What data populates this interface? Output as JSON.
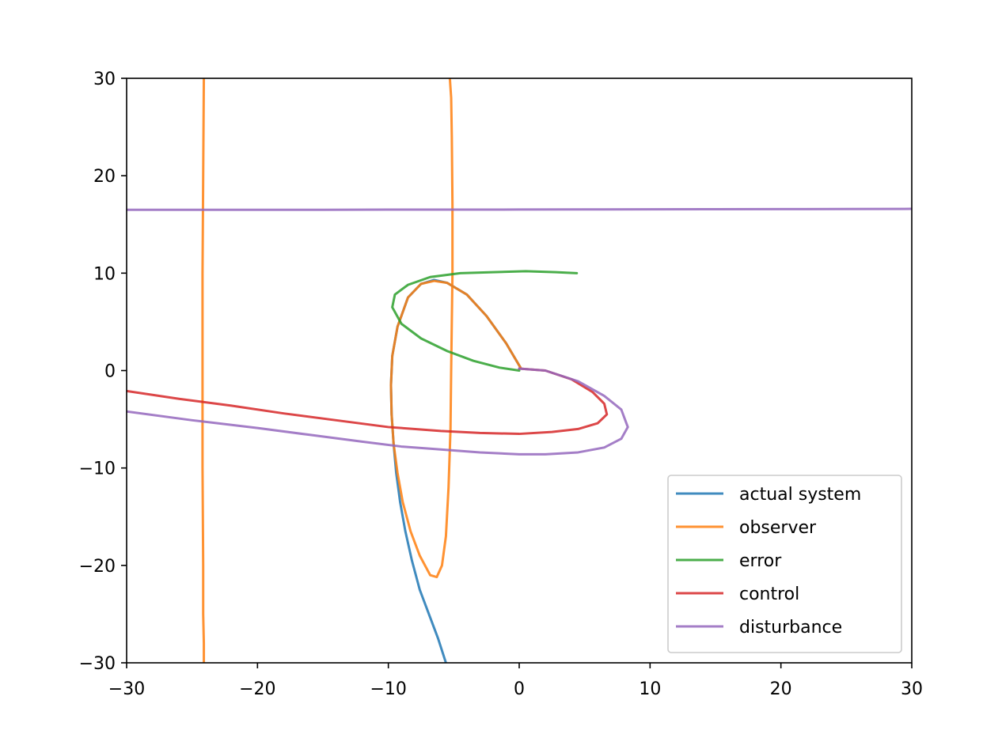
{
  "chart_data": {
    "type": "line",
    "title": "",
    "xlabel": "",
    "ylabel": "",
    "xlim": [
      -30,
      30
    ],
    "ylim": [
      -30,
      30
    ],
    "xticks": [
      -30,
      -20,
      -10,
      0,
      10,
      20,
      30
    ],
    "yticks": [
      -30,
      -20,
      -10,
      0,
      10,
      20,
      30
    ],
    "xtick_labels": [
      "−30",
      "−20",
      "−10",
      "0",
      "10",
      "20",
      "30"
    ],
    "ytick_labels": [
      "−30",
      "−20",
      "−10",
      "0",
      "10",
      "20",
      "30"
    ],
    "grid": false,
    "legend_position": "lower-right",
    "series": [
      {
        "name": "actual system",
        "color": "#1f77b4",
        "x": [
          0.1,
          -1.0,
          -2.5,
          -4.0,
          -5.5,
          -6.5,
          -7.5,
          -8.5,
          -9.3,
          -9.7,
          -9.8,
          -9.75,
          -9.6,
          -9.4,
          -9.1,
          -8.7,
          -8.2,
          -7.6,
          -6.9,
          -6.2,
          -5.6
        ],
        "y": [
          0.3,
          2.8,
          5.6,
          7.8,
          9.0,
          9.3,
          8.9,
          7.5,
          4.5,
          1.5,
          -1.5,
          -4.5,
          -7.5,
          -10.5,
          -13.5,
          -16.5,
          -19.5,
          -22.5,
          -25.0,
          -27.5,
          -30.0
        ]
      },
      {
        "name": "observer",
        "color": "#ff7f0e",
        "x": [
          -24.1,
          -24.15,
          -24.2,
          -24.2,
          -24.2,
          -24.15,
          -24.15,
          -24.1,
          -24.1,
          null,
          0.1,
          -1.0,
          -2.5,
          -4.0,
          -5.5,
          -6.5,
          -7.5,
          -8.5,
          -9.3,
          -9.7,
          -9.8,
          -9.75,
          -9.6,
          -9.3,
          -8.9,
          -8.3,
          -7.6,
          -6.8,
          -6.3,
          -5.9,
          -5.6,
          -5.4,
          -5.25,
          -5.2,
          -5.15,
          -5.1,
          -5.1,
          -5.15,
          -5.2,
          -5.3
        ],
        "y": [
          30.0,
          20.0,
          10.0,
          0.0,
          -10.0,
          -20.0,
          -25.0,
          -28.0,
          -30.0,
          null,
          0.3,
          2.8,
          5.6,
          7.8,
          9.0,
          9.2,
          8.9,
          7.5,
          4.5,
          1.5,
          -1.5,
          -4.5,
          -7.5,
          -10.5,
          -13.5,
          -16.5,
          -19.0,
          -21.0,
          -21.2,
          -20.0,
          -17.0,
          -12.0,
          -6.0,
          0.0,
          5.0,
          10.0,
          17.0,
          24.0,
          28.0,
          30.0
        ]
      },
      {
        "name": "error",
        "color": "#2ca02c",
        "x": [
          0.0,
          -1.5,
          -3.5,
          -5.5,
          -7.5,
          -9.0,
          -9.7,
          -9.5,
          -8.5,
          -6.8,
          -4.5,
          -2.0,
          0.5,
          2.8,
          4.4
        ],
        "y": [
          0.0,
          0.3,
          1.0,
          2.0,
          3.3,
          4.8,
          6.5,
          7.8,
          8.8,
          9.6,
          10.0,
          10.1,
          10.2,
          10.1,
          10.0
        ]
      },
      {
        "name": "control",
        "color": "#d62728",
        "x": [
          0.0,
          2.0,
          4.0,
          5.6,
          6.5,
          6.7,
          6.0,
          4.5,
          2.5,
          0.0,
          -3.0,
          -6.0,
          -10.0,
          -14.0,
          -18.0,
          -22.0,
          -26.0,
          -30.0
        ],
        "y": [
          0.2,
          0.0,
          -0.9,
          -2.2,
          -3.4,
          -4.5,
          -5.4,
          -6.0,
          -6.3,
          -6.5,
          -6.4,
          -6.2,
          -5.8,
          -5.1,
          -4.4,
          -3.6,
          -2.9,
          -2.1
        ]
      },
      {
        "name": "disturbance",
        "color": "#9467bd",
        "x": [
          -30.0,
          -25.0,
          -20.0,
          -15.0,
          -10.0,
          -5.0,
          0.0,
          5.0,
          10.0,
          15.0,
          20.0,
          25.0,
          30.0,
          null,
          0.0,
          2.0,
          4.5,
          6.5,
          7.8,
          8.3,
          7.8,
          6.5,
          4.5,
          2.0,
          0.0,
          -3.0,
          -6.0,
          -9.0,
          -12.0,
          -16.0,
          -20.0,
          -25.0,
          -30.0
        ],
        "y": [
          16.5,
          16.5,
          16.5,
          16.5,
          16.52,
          16.52,
          16.53,
          16.54,
          16.55,
          16.56,
          16.57,
          16.58,
          16.6,
          null,
          0.2,
          0.0,
          -1.1,
          -2.6,
          -4.0,
          -5.8,
          -7.0,
          -7.9,
          -8.4,
          -8.6,
          -8.6,
          -8.4,
          -8.1,
          -7.8,
          -7.3,
          -6.6,
          -5.9,
          -5.1,
          -4.2
        ]
      }
    ]
  }
}
